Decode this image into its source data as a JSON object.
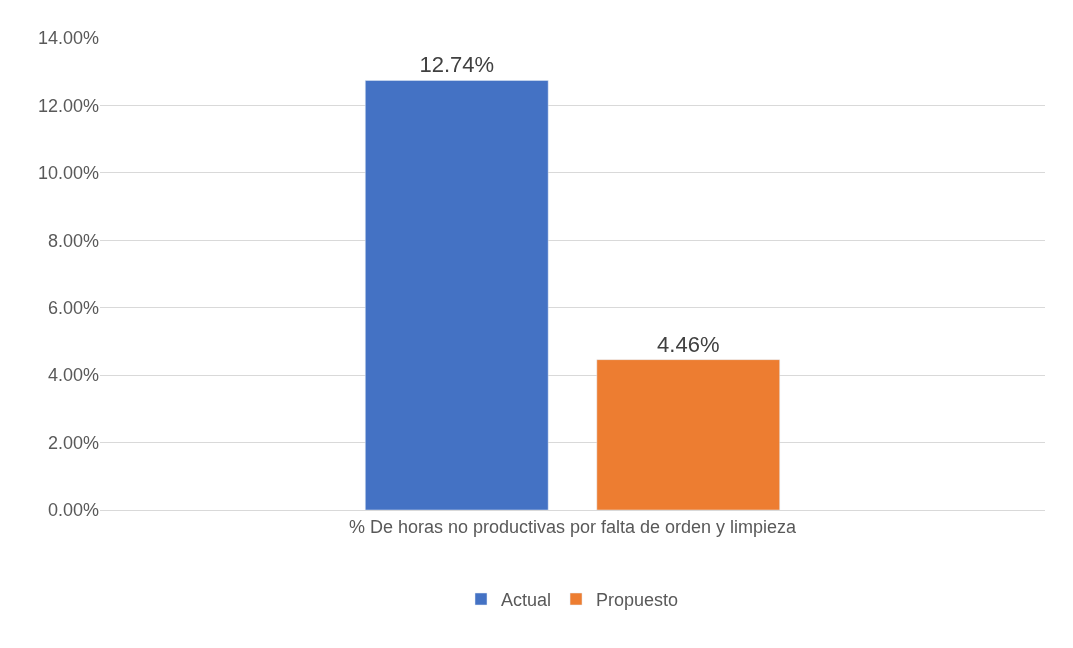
{
  "chart_data": {
    "type": "bar",
    "categories": [
      "% De horas no productivas por falta de orden y limpieza"
    ],
    "series": [
      {
        "name": "Actual",
        "color": "#4472c4",
        "values": [
          12.74
        ],
        "value_labels": [
          "12.74%"
        ]
      },
      {
        "name": "Propuesto",
        "color": "#ed7d31",
        "values": [
          4.46
        ],
        "value_labels": [
          "4.46%"
        ]
      }
    ],
    "ylim": [
      0,
      14
    ],
    "yticks": [
      {
        "value": 0,
        "label": "0.00%"
      },
      {
        "value": 2,
        "label": "2.00%"
      },
      {
        "value": 4,
        "label": "4.00%"
      },
      {
        "value": 6,
        "label": "6.00%"
      },
      {
        "value": 8,
        "label": "8.00%"
      },
      {
        "value": 10,
        "label": "10.00%"
      },
      {
        "value": 12,
        "label": "12.00%"
      },
      {
        "value": 14,
        "label": "14.00%"
      }
    ],
    "grid": "y",
    "legend": "bottom"
  }
}
